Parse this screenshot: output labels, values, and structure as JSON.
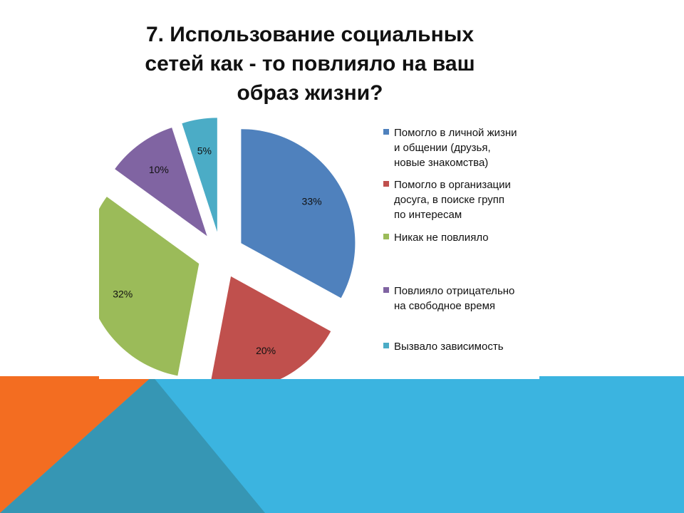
{
  "title_lines": [
    "7. Использование социальных",
    "сетей как - то повлияло на ваш",
    "образ жизни?"
  ],
  "colors": {
    "background_blue": "#3bb4e0",
    "triangle_orange": "#f36d21",
    "triangle_teal": "#3696b4",
    "pie_blue": "#4f81bd",
    "pie_red": "#c0504d",
    "pie_green": "#9bbb59",
    "pie_purple": "#8064a2",
    "pie_cyan": "#4bacc6"
  },
  "chart_data": {
    "type": "pie",
    "title": "7. Использование социальных сетей как - то повлияло на ваш образ жизни?",
    "slices": [
      {
        "label": "Помогло в личной жизни и общении (друзья, новые знакомства)",
        "value": 33,
        "data_label": "33%",
        "color": "#4f81bd"
      },
      {
        "label": "Помогло в организации досуга, в поиске групп по интересам",
        "value": 20,
        "data_label": "20%",
        "color": "#c0504d"
      },
      {
        "label": "Никак не повлияло",
        "value": 32,
        "data_label": "32%",
        "color": "#9bbb59"
      },
      {
        "label": "Повлияло отрицательно на свободное время",
        "value": 10,
        "data_label": "10%",
        "color": "#8064a2"
      },
      {
        "label": "Вызвало зависимость",
        "value": 5,
        "data_label": "5%",
        "color": "#4bacc6"
      }
    ],
    "exploded": true,
    "legend_position": "right"
  },
  "legend": [
    {
      "lines": [
        "Помогло в личной жизни",
        "и общении (друзья,",
        "новые знакомства)"
      ],
      "color": "#4f81bd"
    },
    {
      "lines": [
        "Помогло в организации",
        "досуга, в поиске групп",
        "по интересам"
      ],
      "color": "#c0504d"
    },
    {
      "lines": [
        "Никак не повлияло"
      ],
      "color": "#9bbb59"
    },
    {
      "lines": [
        "Повлияло отрицательно",
        "на свободное время"
      ],
      "color": "#8064a2"
    },
    {
      "lines": [
        "Вызвало зависимость"
      ],
      "color": "#4bacc6"
    }
  ]
}
